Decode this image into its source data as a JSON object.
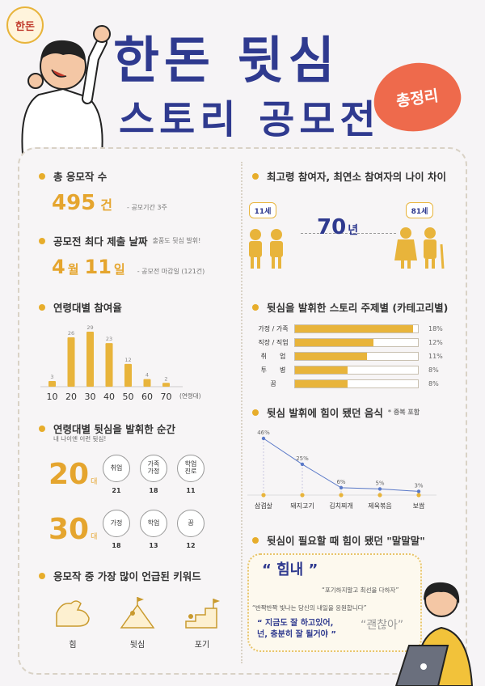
{
  "header": {
    "logo_text": "한돈",
    "title_line1": "한돈 뒷심",
    "title_line2": "스토리 공모전",
    "badge": "총정리"
  },
  "total_entries": {
    "label": "총 응모작 수",
    "value": "495",
    "unit": "건",
    "note": "- 공모기간 3주"
  },
  "max_submission": {
    "label": "공모전 최다 제출 날짜",
    "sub": "출품도 뒷심 발휘!",
    "month": "4",
    "month_unit": "월",
    "day": "11",
    "day_unit": "일",
    "note": "- 공모전 마감일 (121건)"
  },
  "age_participation": {
    "label": "연령대별 참여율",
    "unit": "(연령대)"
  },
  "chart_data": {
    "type": "bar",
    "categories": [
      "10",
      "20",
      "30",
      "40",
      "50",
      "60",
      "70"
    ],
    "values": [
      3,
      26,
      29,
      23,
      12,
      4,
      2
    ]
  },
  "age_moments": {
    "label": "연령대별 뒷심을 발휘한 순간",
    "sub": "내 나이엔 이런 뒷심!",
    "groups": [
      {
        "age": "20",
        "unit": "대",
        "items": [
          {
            "label": "취업",
            "count": "21"
          },
          {
            "label": "가족\n가정",
            "count": "18"
          },
          {
            "label": "학업\n진로",
            "count": "11"
          }
        ]
      },
      {
        "age": "30",
        "unit": "대",
        "items": [
          {
            "label": "가정",
            "count": "18"
          },
          {
            "label": "학업",
            "count": "13"
          },
          {
            "label": "꿈",
            "count": "12"
          }
        ]
      }
    ]
  },
  "keywords": {
    "label": "응모작 중 가장 많이 언급된 키워드",
    "items": [
      {
        "label": "힘",
        "icon": "muscle-arm-icon"
      },
      {
        "label": "뒷심",
        "icon": "climber-icon"
      },
      {
        "label": "포기",
        "icon": "stairs-flag-icon"
      }
    ]
  },
  "age_gap": {
    "label": "최고령 참여자, 최연소 참여자의 나이 차이",
    "youngest": "11세",
    "oldest": "81세",
    "gap_value": "70",
    "gap_unit": "년"
  },
  "categories": {
    "label": "뒷심을 발휘한 스토리 주제별 (카테고리별)",
    "items": [
      {
        "label": "가정 / 가족",
        "pct": "18%",
        "value": 18
      },
      {
        "label": "직장 / 직업",
        "pct": "12%",
        "value": 12
      },
      {
        "label": "취　　업",
        "pct": "11%",
        "value": 11
      },
      {
        "label": "투　　병",
        "pct": "8%",
        "value": 8
      },
      {
        "label": "꿈",
        "pct": "8%",
        "value": 8
      }
    ]
  },
  "foods": {
    "label": "뒷심 발휘에 힘이 됐던 음식",
    "sub": "* 중복 포함",
    "items": [
      {
        "name": "삼겹살",
        "pct": "46%",
        "value": 46
      },
      {
        "name": "돼지고기",
        "pct": "25%",
        "value": 25
      },
      {
        "name": "김치찌개",
        "pct": "6%",
        "value": 6
      },
      {
        "name": "제육볶음",
        "pct": "5%",
        "value": 5
      },
      {
        "name": "보쌈",
        "pct": "3%",
        "value": 3
      }
    ]
  },
  "words": {
    "label": "뒷심이 필요할 때 힘이 됐던 \"말말말\"",
    "q1": "“ 힘내 ”",
    "q2": "“포기하지말고 최선을 다하자”",
    "q3": "“반짝반짝 빛나는 당신의 내일을 응원합니다”",
    "q4": "“ 지금도 잘 하고있어,\n넌, 충분히 잘 될거야 ”",
    "q5": "“괜찮아”"
  },
  "colors": {
    "navy": "#2f3a8f",
    "gold": "#e8b43b",
    "coral": "#ee6a4c"
  }
}
